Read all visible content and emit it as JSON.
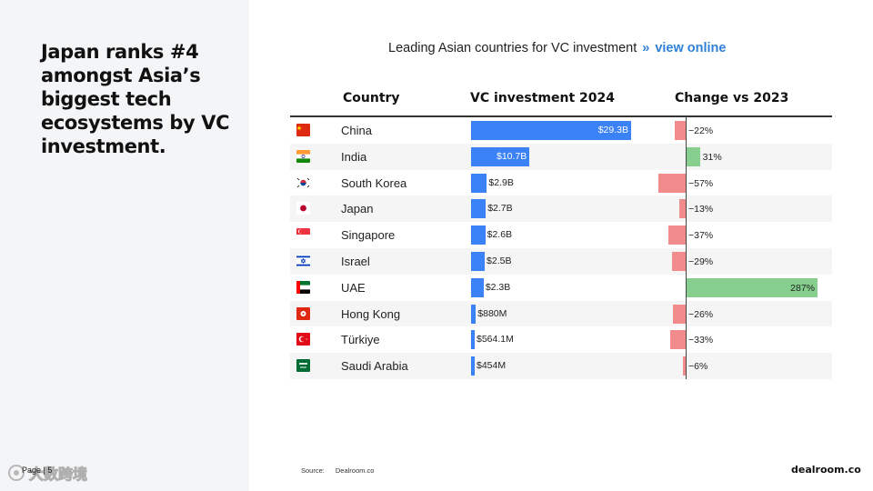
{
  "headline": "Japan ranks #4 amongst Asia’s biggest tech ecosystems by VC investment.",
  "page_number": "Page | 5",
  "watermark_text": "大数跨境",
  "chart_title": "Leading Asian countries for VC investment",
  "chart_title_separator": "»",
  "view_online_label": "view online",
  "columns": {
    "country": "Country",
    "vc": "VC investment 2024",
    "change": "Change vs 2023"
  },
  "colors": {
    "vc_bar": "#3b82f6",
    "negative": "#f28b8b",
    "positive": "#86cf8e",
    "link": "#2f80d9"
  },
  "chart_data": {
    "type": "table",
    "title": "Leading Asian countries for VC investment",
    "countries": [
      "China",
      "India",
      "South Korea",
      "Japan",
      "Singapore",
      "Israel",
      "UAE",
      "Hong Kong",
      "Türkiye",
      "Saudi Arabia"
    ],
    "flags": [
      "china-flag",
      "india-flag",
      "south-korea-flag",
      "japan-flag",
      "singapore-flag",
      "israel-flag",
      "uae-flag",
      "hong-kong-flag",
      "turkiye-flag",
      "saudi-arabia-flag"
    ],
    "vc_investment_2024_usd_b": [
      29.3,
      10.7,
      2.9,
      2.7,
      2.6,
      2.5,
      2.3,
      0.88,
      0.5641,
      0.454
    ],
    "vc_investment_2024_labels": [
      "$29.3B",
      "$10.7B",
      "$2.9B",
      "$2.7B",
      "$2.6B",
      "$2.5B",
      "$2.3B",
      "$880M",
      "$564.1M",
      "$454M"
    ],
    "change_vs_2023_pct": [
      -22,
      31,
      -57,
      -13,
      -37,
      -29,
      287,
      -26,
      -33,
      -6
    ],
    "change_vs_2023_labels": [
      "−22%",
      "31%",
      "−57%",
      "−13%",
      "−37%",
      "−29%",
      "287%",
      "−26%",
      "−33%",
      "−6%"
    ]
  },
  "source_label": "Source:",
  "source_value": "Dealroom.co",
  "brand": "dealroom.co"
}
